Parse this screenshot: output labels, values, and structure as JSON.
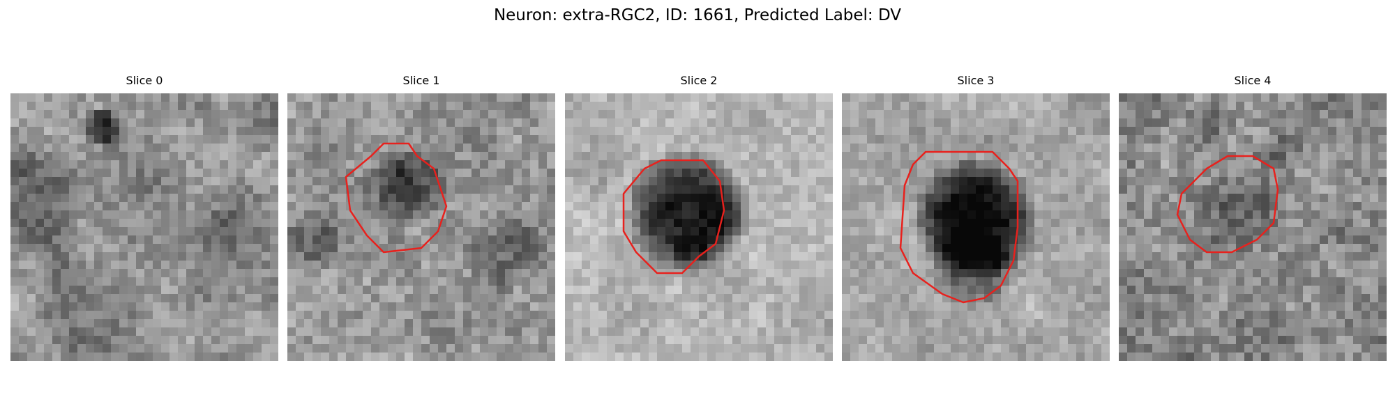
{
  "figure": {
    "title": "Neuron: extra-RGC2, ID: 1661, Predicted Label: DV"
  },
  "contour_color": "#e8211d",
  "slices": [
    {
      "label": "Slice 0",
      "has_contour": false
    },
    {
      "label": "Slice 1",
      "has_contour": true
    },
    {
      "label": "Slice 2",
      "has_contour": true
    },
    {
      "label": "Slice 3",
      "has_contour": true
    },
    {
      "label": "Slice 4",
      "has_contour": true
    }
  ]
}
